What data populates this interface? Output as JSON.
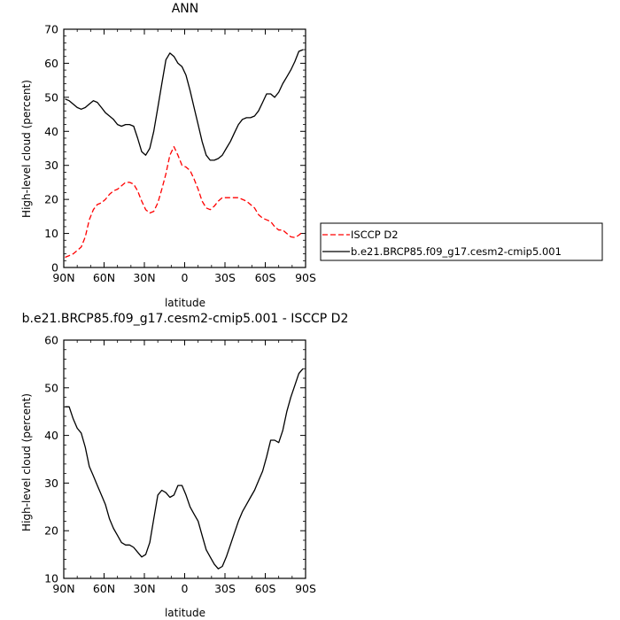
{
  "chart_data": [
    {
      "type": "line",
      "title": "ANN",
      "xlabel": "latitude",
      "ylabel": "High-level cloud (percent)",
      "xlim": [
        90,
        -90
      ],
      "ylim": [
        0,
        70
      ],
      "xticks": [
        90,
        60,
        30,
        0,
        -30,
        -60,
        -90
      ],
      "xtick_labels": [
        "90N",
        "60N",
        "30N",
        "0",
        "30S",
        "60S",
        "90S"
      ],
      "yticks": [
        0,
        10,
        20,
        30,
        40,
        50,
        60,
        70
      ],
      "ytick_labels": [
        "0",
        "10",
        "20",
        "30",
        "40",
        "50",
        "60",
        "70"
      ],
      "grid": false,
      "legend_position": "right-outside",
      "series": [
        {
          "name": "ISCCP D2",
          "color": "#ff0000",
          "dash": "dashed",
          "x": [
            89,
            86,
            83,
            80,
            77,
            74,
            71,
            68,
            65,
            62,
            59,
            56,
            53,
            50,
            47,
            44,
            41,
            38,
            35,
            32,
            29,
            26,
            23,
            20,
            17,
            14,
            11,
            8,
            5,
            2,
            -1,
            -4,
            -7,
            -10,
            -13,
            -16,
            -19,
            -22,
            -25,
            -28,
            -31,
            -34,
            -37,
            -40,
            -43,
            -46,
            -49,
            -52,
            -55,
            -58,
            -61,
            -64,
            -67,
            -70,
            -73,
            -76,
            -79,
            -82,
            -85,
            -88
          ],
          "y": [
            3,
            3.5,
            4,
            5,
            6,
            9,
            14,
            17,
            18.5,
            19,
            20,
            21.5,
            22.5,
            23,
            24,
            25,
            25,
            24.5,
            22.5,
            19.5,
            17,
            16,
            16.5,
            19,
            23,
            27.5,
            33,
            35.5,
            33,
            30,
            29.5,
            28.5,
            26,
            23,
            19.5,
            17.5,
            17,
            18,
            19.5,
            20.5,
            20.5,
            20.5,
            20.5,
            20.5,
            20,
            19.5,
            18.5,
            17.5,
            15.5,
            14.5,
            14,
            13.5,
            12,
            11,
            11,
            10,
            9,
            8.8,
            9.5,
            10.5
          ]
        },
        {
          "name": "b.e21.BRCP85.f09_g17.cesm2-cmip5.001",
          "color": "#000000",
          "dash": "solid",
          "x": [
            89,
            86,
            83,
            80,
            77,
            74,
            71,
            68,
            65,
            62,
            59,
            56,
            53,
            50,
            47,
            44,
            41,
            38,
            35,
            32,
            29,
            26,
            23,
            20,
            17,
            14,
            11,
            8,
            5,
            2,
            -1,
            -4,
            -7,
            -10,
            -13,
            -16,
            -19,
            -22,
            -25,
            -28,
            -31,
            -34,
            -37,
            -40,
            -43,
            -46,
            -49,
            -52,
            -55,
            -58,
            -61,
            -64,
            -67,
            -70,
            -73,
            -76,
            -79,
            -82,
            -85,
            -88
          ],
          "y": [
            49.5,
            49,
            48,
            47,
            46.5,
            47,
            48,
            49,
            48.5,
            47,
            45.5,
            44.5,
            43.5,
            42,
            41.5,
            42,
            42,
            41.5,
            38,
            34,
            33,
            35,
            40,
            47,
            54,
            61,
            63,
            62,
            60,
            59,
            56.5,
            52,
            47,
            42,
            37,
            33,
            31.5,
            31.5,
            32,
            33,
            35,
            37,
            39.5,
            42,
            43.5,
            44,
            44,
            44.5,
            46,
            48.5,
            51,
            51,
            50,
            51.5,
            54,
            56,
            58,
            60.5,
            63.5,
            64
          ]
        }
      ]
    },
    {
      "type": "line",
      "title": "b.e21.BRCP85.f09_g17.cesm2-cmip5.001 - ISCCP D2",
      "xlabel": "latitude",
      "ylabel": "High-level cloud (percent)",
      "xlim": [
        90,
        -90
      ],
      "ylim": [
        10,
        60
      ],
      "xticks": [
        90,
        60,
        30,
        0,
        -30,
        -60,
        -90
      ],
      "xtick_labels": [
        "90N",
        "60N",
        "30N",
        "0",
        "30S",
        "60S",
        "90S"
      ],
      "yticks": [
        10,
        20,
        30,
        40,
        50,
        60
      ],
      "ytick_labels": [
        "10",
        "20",
        "30",
        "40",
        "50",
        "60"
      ],
      "grid": false,
      "series": [
        {
          "color": "#000000",
          "dash": "solid",
          "x": [
            89,
            86,
            83,
            80,
            77,
            74,
            71,
            68,
            65,
            62,
            59,
            56,
            53,
            50,
            47,
            44,
            41,
            38,
            35,
            32,
            29,
            26,
            23,
            20,
            17,
            14,
            11,
            8,
            5,
            2,
            -1,
            -4,
            -7,
            -10,
            -13,
            -16,
            -19,
            -22,
            -25,
            -28,
            -31,
            -34,
            -37,
            -40,
            -43,
            -46,
            -49,
            -52,
            -55,
            -58,
            -61,
            -64,
            -67,
            -70,
            -73,
            -76,
            -79,
            -82,
            -85,
            -88
          ],
          "y": [
            46,
            46,
            43.5,
            41.5,
            40.5,
            37.5,
            33.5,
            31.5,
            29.5,
            27.5,
            25.5,
            22.5,
            20.5,
            19,
            17.5,
            17,
            17,
            16.5,
            15.5,
            14.5,
            15,
            17.5,
            22.5,
            27.5,
            28.5,
            28,
            27,
            27.5,
            29.5,
            29.5,
            27.5,
            25,
            23.5,
            22,
            19,
            16,
            14.5,
            13,
            12,
            12.5,
            14.5,
            17,
            19.5,
            22,
            24,
            25.5,
            27,
            28.5,
            30.5,
            32.5,
            35.5,
            39,
            39,
            38.5,
            41,
            45,
            48,
            50.5,
            53,
            54
          ]
        }
      ]
    }
  ]
}
